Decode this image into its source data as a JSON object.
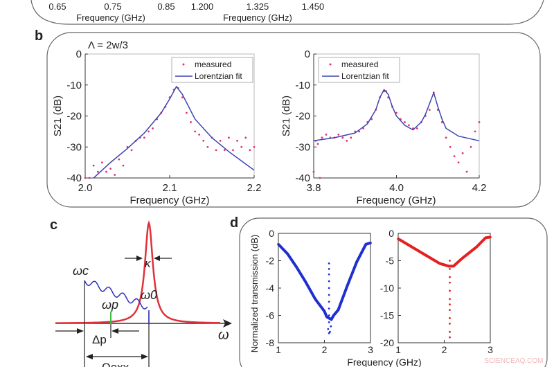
{
  "panel_labels": {
    "b": "b",
    "c": "c",
    "d": "d"
  },
  "panel_a_partial": {
    "left_ticks": [
      "0.65",
      "0.75",
      "0.85"
    ],
    "right_ticks": [
      "1.200",
      "1.325",
      "1.450"
    ],
    "left_xlabel": "Frequency (GHz)",
    "right_xlabel": "Frequency (GHz)"
  },
  "panel_b_annotation": "Λ = 2w/3",
  "panel_c": {
    "labels": {
      "omega_c": "ωc",
      "omega_p": "ωp",
      "omega_0": "ω0",
      "kappa": "κ",
      "delta_p": "Δp",
      "omega_axis": "ω",
      "omega_bottom": "Ωexx"
    },
    "colors": {
      "lorentzian": "#e0303a",
      "wave": "#2b2fc0",
      "pump": "#3cc03c"
    }
  },
  "watermark": "SCIENCEAQ.COM",
  "chart_data": [
    {
      "panel": "b-left",
      "type": "scatter+line",
      "xlabel": "Frequency (GHz)",
      "ylabel": "S21 (dB)",
      "xlim": [
        2.0,
        2.2
      ],
      "ylim": [
        -40,
        0
      ],
      "xticks": [
        "2.0",
        "2.1",
        "2.2"
      ],
      "yticks": [
        "0",
        "-10",
        "-20",
        "-30",
        "-40"
      ],
      "legend": {
        "position": "top-right",
        "entries": [
          "measured",
          "Lorentzian fit"
        ]
      },
      "series": [
        {
          "name": "measured",
          "color": "#e0307a",
          "kind": "points",
          "x": [
            2.0,
            2.005,
            2.01,
            2.015,
            2.02,
            2.025,
            2.03,
            2.035,
            2.04,
            2.045,
            2.05,
            2.055,
            2.06,
            2.065,
            2.07,
            2.075,
            2.08,
            2.085,
            2.09,
            2.095,
            2.1,
            2.105,
            2.11,
            2.115,
            2.12,
            2.125,
            2.13,
            2.135,
            2.14,
            2.145,
            2.15,
            2.155,
            2.16,
            2.165,
            2.17,
            2.175,
            2.18,
            2.185,
            2.19,
            2.195,
            2.2
          ],
          "y": [
            -40,
            -40,
            -36,
            -38,
            -35,
            -38,
            -37,
            -39,
            -34,
            -36,
            -30,
            -31,
            -28,
            -27,
            -27,
            -25,
            -24,
            -21,
            -19,
            -17,
            -14,
            -11.5,
            -11,
            -14,
            -19,
            -22,
            -25,
            -26,
            -28,
            -30,
            -27,
            -31,
            -28,
            -31,
            -27,
            -31,
            -28,
            -30,
            -27,
            -31,
            -30
          ]
        },
        {
          "name": "Lorentzian fit",
          "color": "#3a44b0",
          "kind": "line",
          "x": [
            2.01,
            2.03,
            2.05,
            2.07,
            2.09,
            2.1,
            2.108,
            2.115,
            2.13,
            2.15,
            2.17,
            2.19,
            2.2
          ],
          "y": [
            -40,
            -35,
            -30.5,
            -25.5,
            -19,
            -14.5,
            -10.5,
            -13,
            -21,
            -27,
            -31.5,
            -35.5,
            -37.5
          ]
        }
      ]
    },
    {
      "panel": "b-right",
      "type": "scatter+line",
      "xlabel": "Frequency (GHz)",
      "ylabel": "S21 (dB)",
      "xlim": [
        3.8,
        4.2
      ],
      "ylim": [
        -40,
        0
      ],
      "xticks": [
        "3.8",
        "4.0",
        "4.2"
      ],
      "yticks": [
        "0",
        "-10",
        "-20",
        "-30",
        "-40"
      ],
      "legend": {
        "position": "top-left",
        "entries": [
          "measured",
          "Lorentzian fit"
        ]
      },
      "series": [
        {
          "name": "measured",
          "color": "#e0307a",
          "kind": "points",
          "x": [
            3.8,
            3.805,
            3.81,
            3.815,
            3.82,
            3.83,
            3.84,
            3.85,
            3.86,
            3.87,
            3.88,
            3.89,
            3.9,
            3.91,
            3.92,
            3.93,
            3.94,
            3.95,
            3.96,
            3.97,
            3.975,
            3.98,
            3.99,
            4.0,
            4.01,
            4.02,
            4.03,
            4.04,
            4.05,
            4.06,
            4.07,
            4.08,
            4.09,
            4.1,
            4.11,
            4.12,
            4.13,
            4.14,
            4.15,
            4.16,
            4.17,
            4.18,
            4.19,
            4.2
          ],
          "y": [
            -38,
            -28,
            -29,
            -40,
            -27,
            -26,
            -27,
            -27,
            -26,
            -27,
            -28,
            -27,
            -25,
            -25,
            -24,
            -22,
            -21,
            -18,
            -14,
            -12,
            -12,
            -14,
            -17,
            -19,
            -21,
            -22,
            -23,
            -24,
            -24,
            -22,
            -20,
            -18,
            -12.5,
            -18,
            -22,
            -27,
            -30,
            -33,
            -35,
            -32,
            -38,
            -30,
            -25,
            -22
          ]
        },
        {
          "name": "Lorentzian fit",
          "color": "#3a44b0",
          "kind": "line",
          "x": [
            3.8,
            3.85,
            3.9,
            3.93,
            3.95,
            3.96,
            3.97,
            3.98,
            3.99,
            4.0,
            4.02,
            4.04,
            4.06,
            4.07,
            4.08,
            4.09,
            4.1,
            4.11,
            4.12,
            4.15,
            4.2
          ],
          "y": [
            -28,
            -27,
            -25.5,
            -22.5,
            -18,
            -14,
            -11.5,
            -13,
            -17,
            -20,
            -23,
            -24.5,
            -22,
            -19.5,
            -16,
            -12.5,
            -17,
            -21,
            -24,
            -26.5,
            -28
          ]
        }
      ]
    },
    {
      "panel": "d-left",
      "type": "scatter",
      "xlabel": "Frequency (GHz)",
      "ylabel": "Normalized transmission (dB)",
      "xlim": [
        1,
        3
      ],
      "ylim": [
        -8,
        0
      ],
      "xticks": [
        "1",
        "2",
        "3"
      ],
      "yticks": [
        "0",
        "-2",
        "-4",
        "-6",
        "-8"
      ],
      "series": [
        {
          "color": "#1f2fd0",
          "kind": "band",
          "x": [
            1,
            1.2,
            1.4,
            1.6,
            1.8,
            2.0,
            2.05,
            2.15,
            2.2,
            2.3,
            2.5,
            2.7,
            2.9,
            3.0
          ],
          "y": [
            -0.8,
            -1.5,
            -2.5,
            -3.6,
            -4.8,
            -5.7,
            -6.1,
            -6.3,
            -6.0,
            -5.6,
            -3.8,
            -2.1,
            -0.8,
            -0.7
          ]
        },
        {
          "color": "#1f2fd0",
          "kind": "points",
          "x": [
            2.1,
            2.1,
            2.1,
            2.1,
            2.1,
            2.1,
            2.1,
            2.1,
            2.1,
            2.1,
            2.08,
            2.12,
            2.14,
            2.1
          ],
          "y": [
            -2.2,
            -2.6,
            -3.0,
            -3.5,
            -4.0,
            -4.5,
            -5.0,
            -5.5,
            -6.0,
            -6.5,
            -7.0,
            -7.2,
            -6.8,
            -7.3
          ]
        }
      ]
    },
    {
      "panel": "d-right",
      "type": "scatter",
      "xlabel": "",
      "ylabel": "",
      "xlim": [
        1,
        3
      ],
      "ylim": [
        -20,
        0
      ],
      "xticks": [
        "1",
        "2",
        "3"
      ],
      "yticks": [
        "0",
        "-5",
        "-10",
        "-15",
        "-20"
      ],
      "series": [
        {
          "color": "#e52020",
          "kind": "band",
          "x": [
            1,
            1.3,
            1.6,
            1.9,
            2.1,
            2.2,
            2.4,
            2.7,
            2.9,
            3.0
          ],
          "y": [
            -1,
            -2.5,
            -4,
            -5.5,
            -6,
            -6,
            -4.5,
            -2.5,
            -0.8,
            -0.7
          ]
        },
        {
          "color": "#e52020",
          "kind": "points",
          "x": [
            2.12,
            2.12,
            2.12,
            2.12,
            2.12,
            2.12,
            2.12,
            2.12,
            2.12,
            2.12,
            2.12,
            2.12
          ],
          "y": [
            -5,
            -6.5,
            -8,
            -9,
            -10.5,
            -12,
            -13,
            -14,
            -15.5,
            -16.5,
            -18,
            -19
          ]
        }
      ]
    }
  ]
}
